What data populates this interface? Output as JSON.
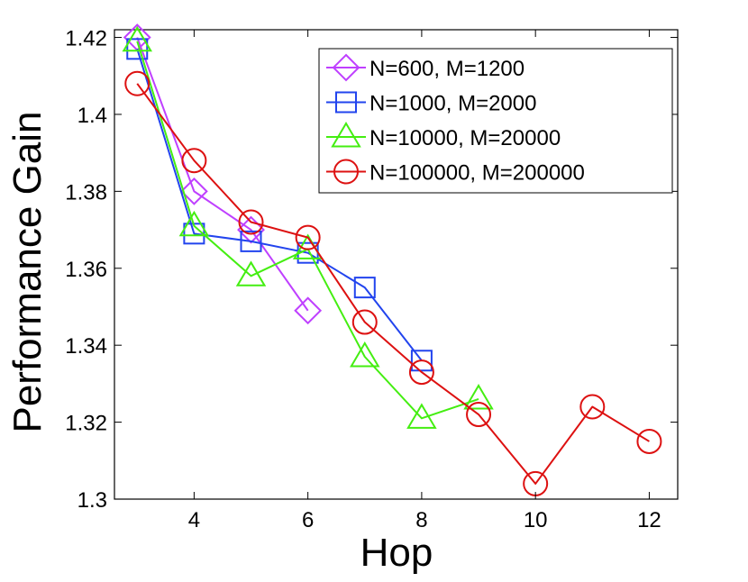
{
  "chart_data": {
    "type": "line",
    "title": "",
    "xlabel": "Hop",
    "ylabel": "Performance Gain",
    "xlim": [
      2.6,
      12.5
    ],
    "ylim": [
      1.3,
      1.422
    ],
    "xticks": [
      4,
      6,
      8,
      10,
      12
    ],
    "yticks": [
      1.3,
      1.32,
      1.34,
      1.36,
      1.38,
      1.4,
      1.42
    ],
    "xtick_labels": [
      "4",
      "6",
      "8",
      "10",
      "12"
    ],
    "ytick_labels": [
      "1.3",
      "1.32",
      "1.34",
      "1.36",
      "1.38",
      "1.4",
      "1.42"
    ],
    "grid": false,
    "legend_position": "top-right",
    "series": [
      {
        "name": "N=600, M=1200",
        "color": "#bf40ff",
        "marker": "diamond",
        "x": [
          3,
          4,
          5,
          6
        ],
        "values": [
          1.42,
          1.38,
          1.37,
          1.349
        ]
      },
      {
        "name": "N=1000, M=2000",
        "color": "#2244ee",
        "marker": "square",
        "x": [
          3,
          4,
          5,
          6,
          7,
          8
        ],
        "values": [
          1.417,
          1.369,
          1.367,
          1.364,
          1.355,
          1.336
        ]
      },
      {
        "name": "N=10000, M=20000",
        "color": "#44ee11",
        "marker": "triangle",
        "x": [
          3,
          4,
          5,
          6,
          7,
          8,
          9
        ],
        "values": [
          1.419,
          1.371,
          1.358,
          1.365,
          1.337,
          1.321,
          1.326
        ]
      },
      {
        "name": "N=100000, M=200000",
        "color": "#dd1111",
        "marker": "circle",
        "x": [
          3,
          4,
          5,
          6,
          7,
          8,
          9,
          10,
          11,
          12
        ],
        "values": [
          1.408,
          1.388,
          1.372,
          1.368,
          1.346,
          1.333,
          1.322,
          1.304,
          1.324,
          1.315
        ]
      }
    ]
  }
}
